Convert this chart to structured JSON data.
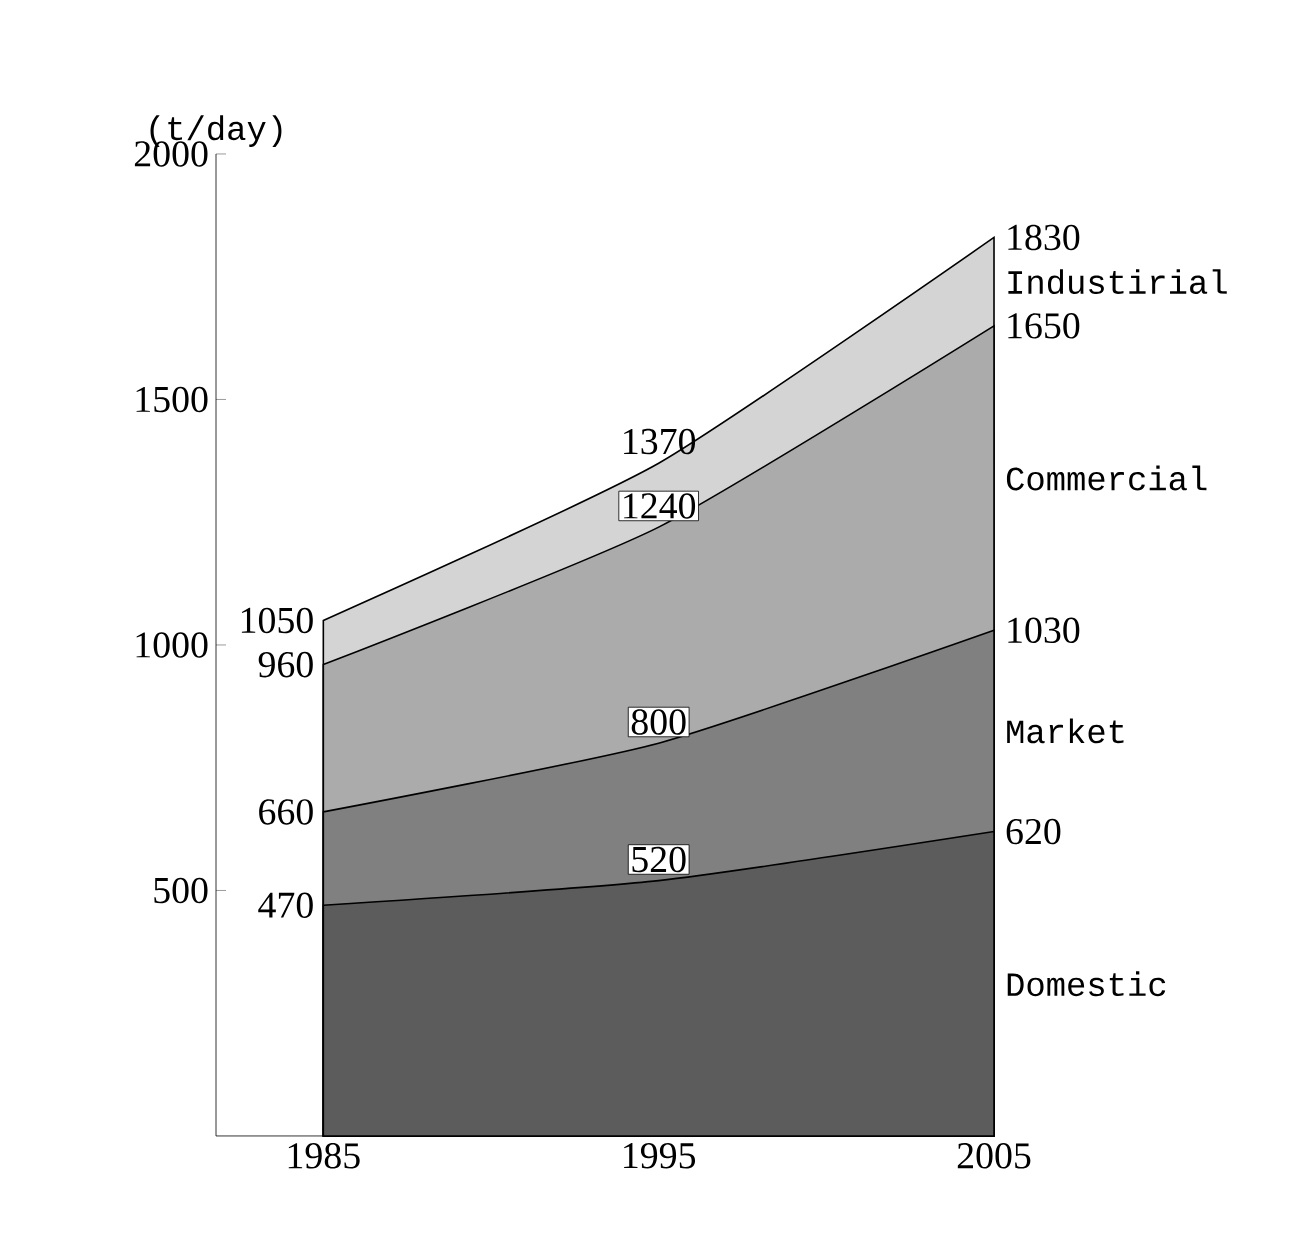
{
  "chart_data": {
    "type": "area",
    "ylabel": "(t/day)",
    "data_labels": true,
    "x": [
      1985,
      1995,
      2005
    ],
    "xlim": [
      1981.8,
      2005
    ],
    "xticks": [
      1985,
      1995,
      2005
    ],
    "ylim": [
      0,
      2000
    ],
    "yticks": [
      500,
      1000,
      1500,
      2000
    ],
    "series": [
      {
        "name": "Domestic",
        "color": "#5c5c5c",
        "values": [
          470,
          520,
          620
        ]
      },
      {
        "name": "Market",
        "color": "#808080",
        "values": [
          660,
          800,
          1030
        ]
      },
      {
        "name": "Commercial",
        "color": "#ababab",
        "values": [
          960,
          1240,
          1650
        ]
      },
      {
        "name": "Industirial",
        "color": "#d4d4d4",
        "values": [
          1050,
          1370,
          1830
        ]
      }
    ]
  }
}
